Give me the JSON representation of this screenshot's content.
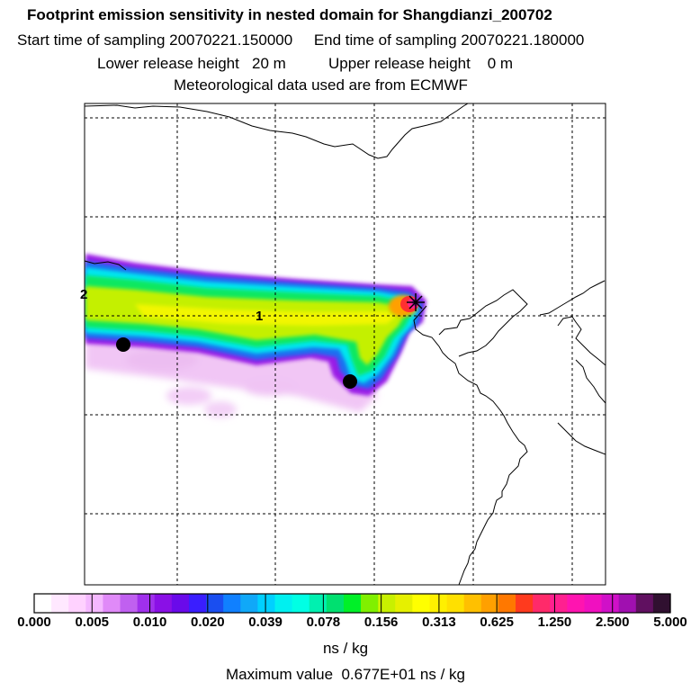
{
  "title": "Footprint emission sensitivity in nested domain for Shangdianzi_200702",
  "subtitle_line1": "Start time of sampling 20070221.150000     End time of sampling 20070221.180000",
  "subtitle_line2": "Lower release height   20 m          Upper release height    0 m",
  "subtitle_line3": "Meteorological data used are from ECMWF",
  "chart_data": {
    "type": "heatmap",
    "title": "Footprint emission sensitivity in nested domain for Shangdianzi_200702",
    "sampling_start": "20070221.150000",
    "sampling_end": "20070221.180000",
    "lower_release_height_m": 20,
    "upper_release_height_m": 0,
    "met_data": "ECMWF",
    "colorbar_unit": "ns / kg",
    "colorbar_ticks": [
      "0.000",
      "0.005",
      "0.010",
      "0.020",
      "0.039",
      "0.078",
      "0.156",
      "0.313",
      "0.625",
      "1.250",
      "2.500",
      "5.000"
    ],
    "colorbar_colors": [
      "#ffffff",
      "#ffe8ff",
      "#ffd2ff",
      "#f4b8ff",
      "#e08af8",
      "#c060f0",
      "#a030ec",
      "#8a10e6",
      "#6a0aea",
      "#3a1eff",
      "#1a4ef0",
      "#1080ff",
      "#10a8f8",
      "#00d0ff",
      "#00f0f0",
      "#00ffe4",
      "#00f0b0",
      "#00e070",
      "#00f028",
      "#80f000",
      "#c8f000",
      "#e6f000",
      "#ffff00",
      "#fff000",
      "#ffe000",
      "#ffc000",
      "#ffa000",
      "#ff7800",
      "#ff3a1e",
      "#ff2a6a",
      "#ff2090",
      "#ff14b0",
      "#f010c0",
      "#d010c8",
      "#a010b0",
      "#601060",
      "#301030"
    ],
    "plume_labels": [
      "1",
      "2"
    ],
    "receptor_marker": "*",
    "max_value_label": "Maximum value  0.677E+01 ns / kg"
  }
}
